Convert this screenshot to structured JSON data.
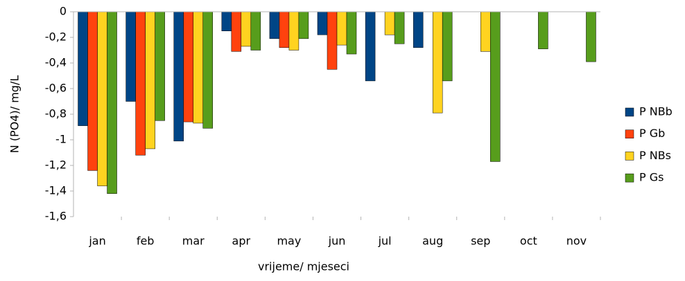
{
  "chart_data": {
    "type": "bar",
    "y_label": "N (PO4)/ mg/L",
    "x_label": "vrijeme/ mjeseci",
    "categories": [
      "jan",
      "feb",
      "mar",
      "apr",
      "may",
      "jun",
      "jul",
      "aug",
      "sep",
      "oct",
      "nov"
    ],
    "series": [
      {
        "name": "P NBb",
        "color": "#004586",
        "values": [
          -0.89,
          -0.7,
          -1.01,
          -0.15,
          -0.21,
          -0.18,
          -0.54,
          -0.28,
          null,
          null,
          null
        ]
      },
      {
        "name": "P Gb",
        "color": "#ff420e",
        "values": [
          -1.24,
          -1.12,
          -0.86,
          -0.31,
          -0.28,
          -0.45,
          null,
          null,
          null,
          null,
          null
        ]
      },
      {
        "name": "P NBs",
        "color": "#ffd320",
        "values": [
          -1.36,
          -1.07,
          -0.87,
          -0.27,
          -0.3,
          -0.26,
          -0.18,
          -0.79,
          -0.31,
          null,
          null
        ]
      },
      {
        "name": "P Gs",
        "color": "#579d1c",
        "values": [
          -1.42,
          -0.85,
          -0.91,
          -0.3,
          -0.21,
          -0.33,
          -0.25,
          -0.54,
          -1.17,
          -0.29,
          -0.39
        ]
      }
    ],
    "ylim": [
      -1.6,
      0
    ],
    "yticks": [
      0,
      {
        "value": -0.2,
        "label": "-0,2"
      },
      {
        "value": -0.4,
        "label": "-0,4"
      },
      {
        "value": -0.6,
        "label": "-0,6"
      },
      {
        "value": -0.8,
        "label": "-0,8"
      },
      -1,
      {
        "value": -1.2,
        "label": "-1,2"
      },
      {
        "value": -1.4,
        "label": "-1,4"
      },
      {
        "value": -1.6,
        "label": "-1,6"
      }
    ],
    "grid": false,
    "legend": "right"
  }
}
